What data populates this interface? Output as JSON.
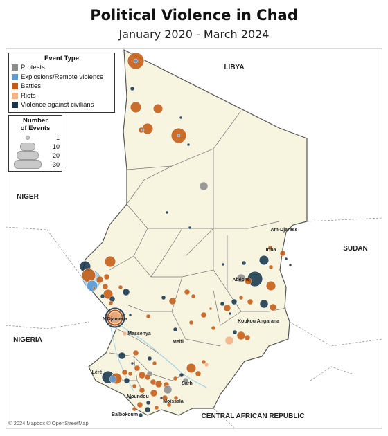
{
  "title": "Political Violence in Chad",
  "subtitle": "January 2020 - March 2024",
  "legend": {
    "event_type_title": "Event Type",
    "types": [
      {
        "label": "Protests",
        "color": "#8c8c8c"
      },
      {
        "label": "Explosions/Remote violence",
        "color": "#5b9bd5"
      },
      {
        "label": "Battles",
        "color": "#c55a11"
      },
      {
        "label": "Riots",
        "color": "#f4b183"
      },
      {
        "label": "Violence against civilians",
        "color": "#17364a"
      }
    ],
    "size_title_line1": "Number",
    "size_title_line2": "of Events",
    "sizes": [
      "1",
      "10",
      "20",
      "30"
    ]
  },
  "countries": {
    "libya": "LIBYA",
    "niger": "NIGER",
    "sudan": "SUDAN",
    "nigeria": "NIGERIA",
    "car": "CENTRAL AFRICAN REPUBLIC"
  },
  "cities": {
    "am_djarass": "Am-Djarass",
    "iriba": "Iriba",
    "abeche": "Abéché",
    "koukou": "Koukou Angarana",
    "ndjamena": "N'Djamena",
    "massenya": "Massenya",
    "melfi": "Melfi",
    "lere": "Léré",
    "sarh": "Sarh",
    "moundou": "Moundou",
    "moissala": "Moïssala",
    "baibokoum": "Baïbokoum"
  },
  "attribution": "© 2024 Mapbox © OpenStreetMap",
  "colors": {
    "land": "#f7f5e0",
    "neighbor": "#ffffff",
    "border": "#555555",
    "water": "#a9d3ea",
    "protests": "#8c8c8c",
    "explosions": "#5b9bd5",
    "battles": "#c55a11",
    "riots": "#f4b183",
    "civilians": "#17364a"
  }
}
